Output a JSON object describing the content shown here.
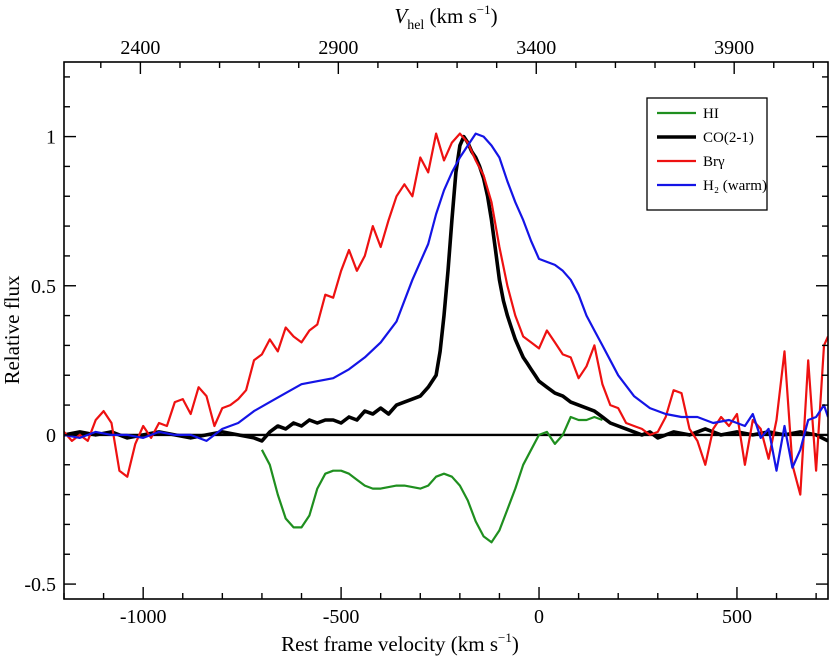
{
  "chart_data": {
    "type": "line",
    "xlabel": "Rest frame velocity (km s",
    "xlabel_sup": "−1",
    "xlabel_tail": ")",
    "ylabel": "Relative flux",
    "top_axis_label": "V",
    "top_axis_label_sub": "hel",
    "top_axis_label_unit": " (km s",
    "top_axis_label_sup": "−1",
    "top_axis_label_tail": ")",
    "xlim": [
      -1200,
      730
    ],
    "ylim": [
      -0.55,
      1.25
    ],
    "x_ticks": [
      -1000,
      -500,
      0,
      500
    ],
    "x_tick_labels": [
      "-1000",
      "-500",
      "0",
      "500"
    ],
    "y_ticks": [
      -0.5,
      0,
      0.5,
      1
    ],
    "y_tick_labels": [
      "-0.5",
      "0",
      "0.5",
      "1"
    ],
    "top_ticks_vhel": [
      2400,
      2900,
      3400,
      3900
    ],
    "top_tick_labels": [
      "2400",
      "2900",
      "3400",
      "3900"
    ],
    "vhel_offset": 3407,
    "zero_line": true,
    "legend_position": "top-right",
    "series": [
      {
        "name": "HI",
        "color": "#1f8f1f",
        "width": 2.2,
        "x": [
          -700,
          -680,
          -660,
          -640,
          -620,
          -600,
          -580,
          -560,
          -540,
          -520,
          -500,
          -480,
          -460,
          -440,
          -420,
          -400,
          -380,
          -360,
          -340,
          -320,
          -300,
          -280,
          -260,
          -240,
          -220,
          -200,
          -180,
          -160,
          -140,
          -120,
          -100,
          -80,
          -60,
          -40,
          -20,
          0,
          20,
          40,
          60,
          80,
          100,
          120,
          140,
          160
        ],
        "y": [
          -0.05,
          -0.1,
          -0.2,
          -0.28,
          -0.31,
          -0.31,
          -0.27,
          -0.18,
          -0.13,
          -0.12,
          -0.12,
          -0.13,
          -0.15,
          -0.17,
          -0.18,
          -0.18,
          -0.175,
          -0.17,
          -0.17,
          -0.175,
          -0.18,
          -0.17,
          -0.14,
          -0.13,
          -0.14,
          -0.17,
          -0.22,
          -0.29,
          -0.34,
          -0.36,
          -0.32,
          -0.25,
          -0.18,
          -0.1,
          -0.05,
          0.0,
          0.01,
          -0.03,
          0.0,
          0.06,
          0.05,
          0.05,
          0.06,
          0.05
        ]
      },
      {
        "name": "CO(2-1)",
        "color": "#000000",
        "width": 3.6,
        "x": [
          -1200,
          -1160,
          -1120,
          -1080,
          -1040,
          -1000,
          -960,
          -920,
          -880,
          -840,
          -800,
          -760,
          -720,
          -700,
          -680,
          -660,
          -640,
          -620,
          -600,
          -580,
          -560,
          -540,
          -520,
          -500,
          -480,
          -460,
          -440,
          -420,
          -400,
          -380,
          -360,
          -340,
          -320,
          -300,
          -280,
          -260,
          -250,
          -240,
          -230,
          -220,
          -210,
          -200,
          -190,
          -180,
          -170,
          -160,
          -150,
          -140,
          -130,
          -120,
          -110,
          -100,
          -90,
          -80,
          -70,
          -60,
          -50,
          -40,
          -30,
          -20,
          -10,
          0,
          20,
          40,
          60,
          80,
          100,
          120,
          140,
          160,
          180,
          200,
          220,
          240,
          260,
          280,
          300,
          340,
          380,
          420,
          460,
          500,
          540,
          580,
          620,
          660,
          700,
          730
        ],
        "y": [
          0,
          0.01,
          0.0,
          0.01,
          -0.01,
          0.0,
          0.01,
          0.0,
          -0.01,
          0.0,
          0.01,
          0.0,
          -0.01,
          -0.02,
          0.01,
          0.03,
          0.02,
          0.04,
          0.03,
          0.05,
          0.04,
          0.05,
          0.05,
          0.04,
          0.06,
          0.05,
          0.08,
          0.07,
          0.09,
          0.07,
          0.1,
          0.11,
          0.12,
          0.13,
          0.16,
          0.2,
          0.28,
          0.4,
          0.55,
          0.72,
          0.88,
          0.97,
          1.0,
          0.98,
          0.95,
          0.93,
          0.9,
          0.86,
          0.8,
          0.72,
          0.62,
          0.52,
          0.45,
          0.4,
          0.36,
          0.32,
          0.29,
          0.26,
          0.24,
          0.22,
          0.2,
          0.18,
          0.16,
          0.14,
          0.13,
          0.11,
          0.1,
          0.09,
          0.08,
          0.06,
          0.04,
          0.03,
          0.02,
          0.01,
          0.0,
          0.01,
          -0.01,
          0.01,
          0.0,
          0.02,
          0.0,
          0.01,
          0.0,
          0.01,
          0.0,
          0.01,
          0.0,
          -0.02
        ]
      },
      {
        "name": "Brγ",
        "color": "#ee1111",
        "width": 2.2,
        "x": [
          -1200,
          -1180,
          -1160,
          -1140,
          -1120,
          -1100,
          -1080,
          -1060,
          -1040,
          -1020,
          -1000,
          -980,
          -960,
          -940,
          -920,
          -900,
          -880,
          -860,
          -840,
          -820,
          -800,
          -780,
          -760,
          -740,
          -720,
          -700,
          -680,
          -660,
          -640,
          -620,
          -600,
          -580,
          -560,
          -540,
          -520,
          -500,
          -480,
          -460,
          -440,
          -420,
          -400,
          -380,
          -360,
          -340,
          -320,
          -300,
          -280,
          -260,
          -240,
          -220,
          -200,
          -180,
          -160,
          -140,
          -120,
          -100,
          -80,
          -60,
          -40,
          -20,
          0,
          20,
          40,
          60,
          80,
          100,
          120,
          140,
          160,
          180,
          200,
          220,
          240,
          260,
          280,
          300,
          320,
          340,
          360,
          380,
          400,
          420,
          440,
          460,
          480,
          500,
          520,
          540,
          560,
          580,
          600,
          620,
          640,
          660,
          680,
          700,
          720,
          730
        ],
        "y": [
          0.01,
          -0.02,
          0.0,
          -0.02,
          0.05,
          0.08,
          0.04,
          -0.12,
          -0.14,
          -0.03,
          0.03,
          -0.01,
          0.04,
          0.03,
          0.11,
          0.12,
          0.07,
          0.16,
          0.13,
          0.03,
          0.09,
          0.1,
          0.12,
          0.15,
          0.25,
          0.27,
          0.32,
          0.28,
          0.36,
          0.33,
          0.31,
          0.35,
          0.37,
          0.47,
          0.46,
          0.55,
          0.62,
          0.55,
          0.6,
          0.7,
          0.63,
          0.72,
          0.8,
          0.84,
          0.8,
          0.93,
          0.88,
          1.01,
          0.92,
          0.98,
          1.01,
          0.98,
          0.92,
          0.87,
          0.78,
          0.63,
          0.5,
          0.4,
          0.33,
          0.31,
          0.29,
          0.35,
          0.31,
          0.27,
          0.26,
          0.19,
          0.23,
          0.3,
          0.17,
          0.1,
          0.09,
          0.04,
          0.03,
          0.02,
          0.0,
          0.01,
          0.06,
          0.15,
          0.14,
          0.02,
          -0.02,
          -0.1,
          0.02,
          0.06,
          0.03,
          0.07,
          -0.1,
          0.05,
          0.02,
          -0.08,
          0.05,
          0.28,
          -0.1,
          -0.2,
          0.25,
          -0.12,
          0.3,
          0.33
        ]
      },
      {
        "name": "H₂ (warm)",
        "color": "#1414e6",
        "width": 2.2,
        "x": [
          -1200,
          -1160,
          -1120,
          -1080,
          -1040,
          -1000,
          -960,
          -920,
          -880,
          -840,
          -800,
          -760,
          -720,
          -680,
          -640,
          -600,
          -560,
          -520,
          -480,
          -440,
          -400,
          -360,
          -320,
          -280,
          -260,
          -240,
          -220,
          -200,
          -180,
          -160,
          -140,
          -120,
          -100,
          -80,
          -60,
          -40,
          -20,
          0,
          20,
          40,
          60,
          80,
          100,
          120,
          140,
          160,
          180,
          200,
          240,
          280,
          320,
          360,
          400,
          440,
          480,
          520,
          540,
          560,
          580,
          600,
          620,
          640,
          660,
          680,
          700,
          720,
          730
        ],
        "y": [
          0.0,
          -0.01,
          0.01,
          0.0,
          0.0,
          -0.01,
          0.01,
          0.0,
          0.0,
          -0.02,
          0.02,
          0.04,
          0.08,
          0.11,
          0.14,
          0.17,
          0.18,
          0.19,
          0.22,
          0.26,
          0.31,
          0.38,
          0.52,
          0.64,
          0.74,
          0.82,
          0.88,
          0.93,
          0.97,
          1.01,
          1.0,
          0.97,
          0.93,
          0.85,
          0.78,
          0.72,
          0.65,
          0.59,
          0.58,
          0.57,
          0.55,
          0.52,
          0.47,
          0.4,
          0.35,
          0.3,
          0.25,
          0.2,
          0.13,
          0.09,
          0.07,
          0.06,
          0.06,
          0.04,
          0.05,
          0.03,
          0.07,
          -0.01,
          0.02,
          -0.12,
          0.03,
          -0.11,
          -0.05,
          0.05,
          0.06,
          0.1,
          0.06
        ]
      }
    ]
  }
}
